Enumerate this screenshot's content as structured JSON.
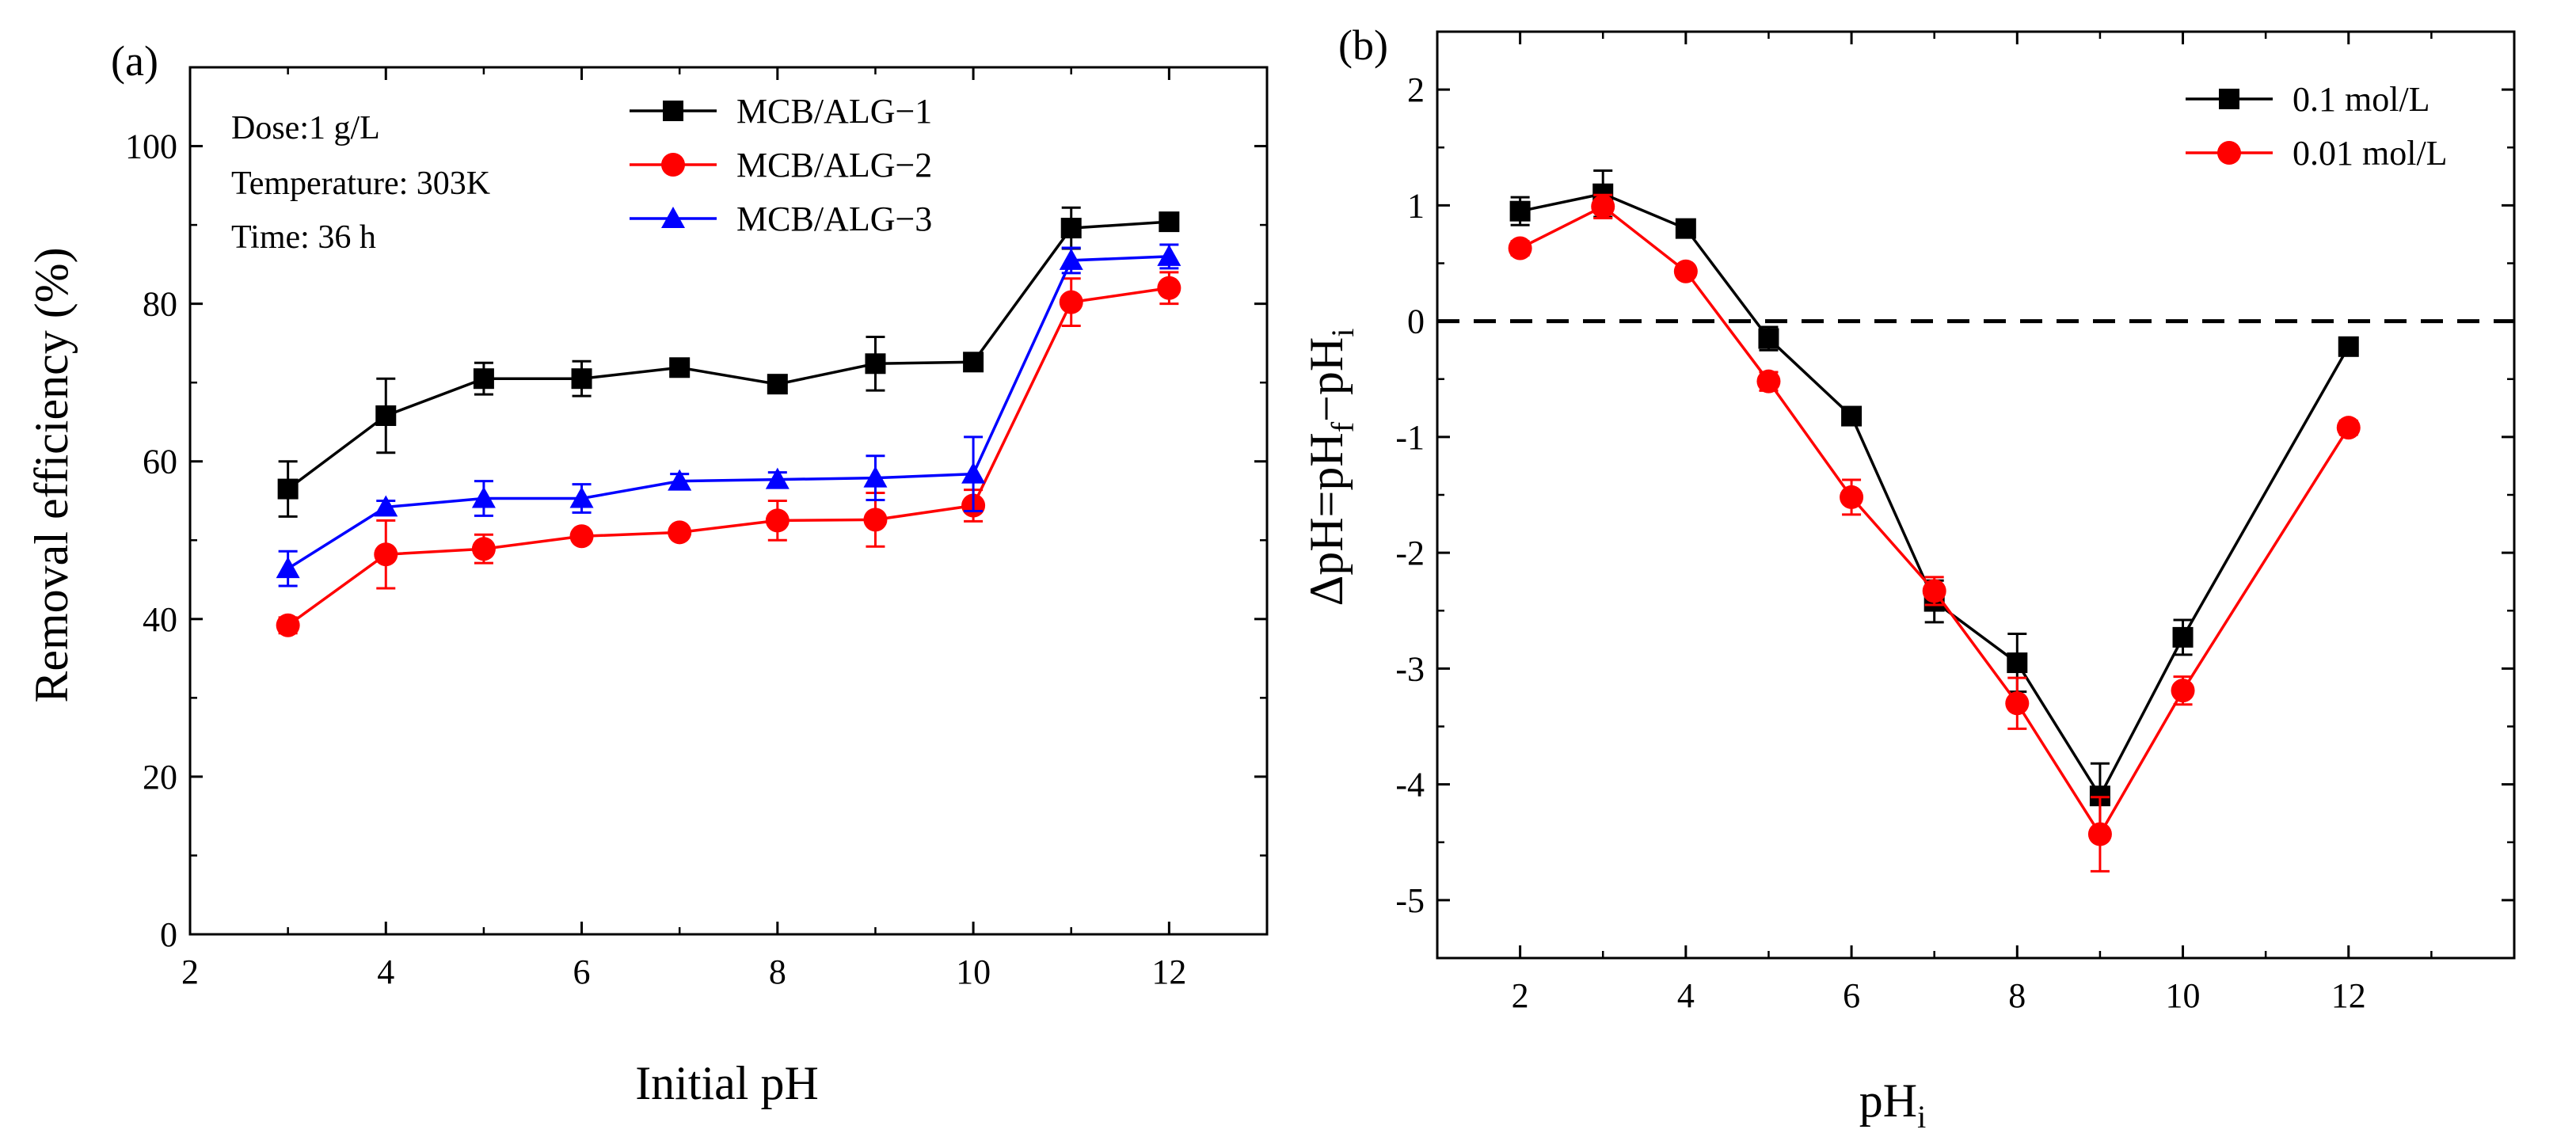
{
  "chart_data": [
    {
      "type": "line",
      "panel_label": "(a)",
      "xlabel": "Initial pH",
      "ylabel": "Removal efficiency (%)",
      "xlim": [
        2,
        13
      ],
      "ylim": [
        0,
        110
      ],
      "xticks": [
        "2",
        "4",
        "6",
        "8",
        "10",
        "12"
      ],
      "yticks": [
        "0",
        "20",
        "40",
        "60",
        "80",
        "100"
      ],
      "annotations": [
        "Dose:1 g/L",
        "Temperature: 303K",
        "Time: 36 h"
      ],
      "legend_position": "top-right",
      "series": [
        {
          "name": "MCB/ALG−1",
          "color": "#000000",
          "marker": "square",
          "x": [
            3,
            4,
            5,
            6,
            7,
            8,
            9,
            10,
            11,
            12
          ],
          "y": [
            56.5,
            65.8,
            70.5,
            70.5,
            71.9,
            69.8,
            72.4,
            72.6,
            89.6,
            90.4
          ],
          "err": [
            3.5,
            4.7,
            2.0,
            2.2,
            0.8,
            0.5,
            3.4,
            1.0,
            2.6,
            0.6
          ]
        },
        {
          "name": "MCB/ALG−2",
          "color": "#ff0000",
          "marker": "circle",
          "x": [
            3,
            4,
            5,
            6,
            7,
            8,
            9,
            10,
            11,
            12
          ],
          "y": [
            39.2,
            48.2,
            48.9,
            50.5,
            51.0,
            52.5,
            52.6,
            54.4,
            80.2,
            82.0
          ],
          "err": [
            1.0,
            4.3,
            1.8,
            0.7,
            0.6,
            2.5,
            3.4,
            2.0,
            3.0,
            2.0
          ]
        },
        {
          "name": "MCB/ALG−3",
          "color": "#0000ff",
          "marker": "triangle",
          "x": [
            3,
            4,
            5,
            6,
            7,
            8,
            9,
            10,
            11,
            12
          ],
          "y": [
            46.4,
            54.2,
            55.3,
            55.3,
            57.5,
            57.7,
            57.9,
            58.4,
            85.5,
            86.0
          ],
          "err": [
            2.2,
            0.8,
            2.2,
            1.8,
            0.9,
            0.9,
            2.8,
            4.7,
            1.6,
            1.5
          ]
        }
      ]
    },
    {
      "type": "line",
      "panel_label": "(b)",
      "xlabel_main": "pH",
      "xlabel_sub": "i",
      "ylabel_parts": [
        "ΔpH=pH",
        "f",
        "−pH",
        "i"
      ],
      "xlim": [
        1,
        14
      ],
      "ylim": [
        -5.5,
        2.5
      ],
      "xticks": [
        "2",
        "4",
        "6",
        "8",
        "10",
        "12"
      ],
      "yticks": [
        "2",
        "1",
        "0",
        "-1",
        "-2",
        "-3",
        "-4",
        "-5"
      ],
      "reference_line_y": 0,
      "legend_position": "top-right",
      "series": [
        {
          "name": "0.1 mol/L",
          "color": "#000000",
          "marker": "square",
          "x": [
            2,
            3,
            4,
            5,
            6,
            7,
            8,
            9,
            10,
            12
          ],
          "y": [
            0.95,
            1.1,
            0.8,
            -0.15,
            -0.82,
            -2.42,
            -2.95,
            -4.1,
            -2.73,
            -0.22
          ],
          "err": [
            0.12,
            0.2,
            0.05,
            0.1,
            0.05,
            0.18,
            0.25,
            0.28,
            0.15,
            0.05
          ]
        },
        {
          "name": "0.01 mol/L",
          "color": "#ff0000",
          "marker": "circle",
          "x": [
            2,
            3,
            4,
            5,
            6,
            7,
            8,
            9,
            10,
            12
          ],
          "y": [
            0.63,
            0.99,
            0.43,
            -0.52,
            -1.52,
            -2.33,
            -3.3,
            -4.43,
            -3.19,
            -0.92
          ],
          "err": [
            0.06,
            0.1,
            0.05,
            0.08,
            0.15,
            0.12,
            0.22,
            0.32,
            0.12,
            0.06
          ]
        }
      ]
    }
  ]
}
